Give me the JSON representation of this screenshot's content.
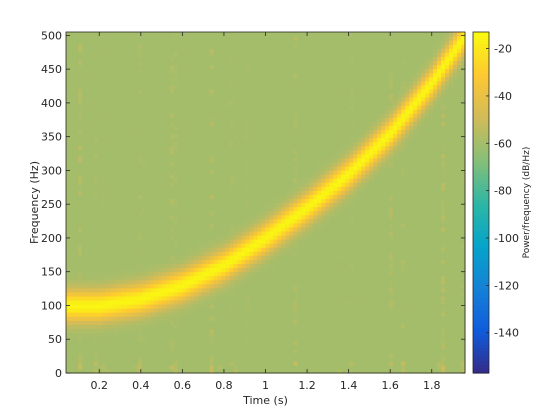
{
  "chart_data": {
    "type": "heatmap",
    "title": "",
    "xlabel": "Time (s)",
    "ylabel": "Frequency (Hz)",
    "colorbar_label": "Power/frequency (dB/Hz)",
    "colormap": "parula",
    "xlim": [
      0.04,
      1.96
    ],
    "ylim": [
      0,
      505
    ],
    "clim": [
      -157,
      -13
    ],
    "x_ticks": [
      0.2,
      0.4,
      0.6,
      0.8,
      1,
      1.2,
      1.4,
      1.6,
      1.8
    ],
    "x_tick_labels": [
      "0.2",
      "0.4",
      "0.6",
      "0.8",
      "1",
      "1.2",
      "1.4",
      "1.6",
      "1.8"
    ],
    "y_ticks": [
      0,
      50,
      100,
      150,
      200,
      250,
      300,
      350,
      400,
      450,
      500
    ],
    "y_tick_labels": [
      "0",
      "50",
      "100",
      "150",
      "200",
      "250",
      "300",
      "350",
      "400",
      "450",
      "500"
    ],
    "colorbar_ticks": [
      -20,
      -40,
      -60,
      -80,
      -100,
      -120,
      -140
    ],
    "colorbar_tick_labels": [
      "-20",
      "-40",
      "-60",
      "-80",
      "-100",
      "-120",
      "-140"
    ],
    "ridge": {
      "time": [
        0.04,
        0.2,
        0.4,
        0.6,
        0.8,
        1.0,
        1.2,
        1.4,
        1.6,
        1.8,
        1.96
      ],
      "frequency": [
        100,
        100,
        110,
        130,
        160,
        200,
        245,
        295,
        355,
        430,
        500
      ],
      "peak_power": -15,
      "background_power": -72
    },
    "grid": false,
    "legend": "none"
  },
  "colors": {
    "parula": [
      "#352a87",
      "#0f5cdd",
      "#1481d6",
      "#06a4ca",
      "#2eb7a4",
      "#87bf77",
      "#d1bb59",
      "#fec832",
      "#f9fb0e"
    ]
  }
}
